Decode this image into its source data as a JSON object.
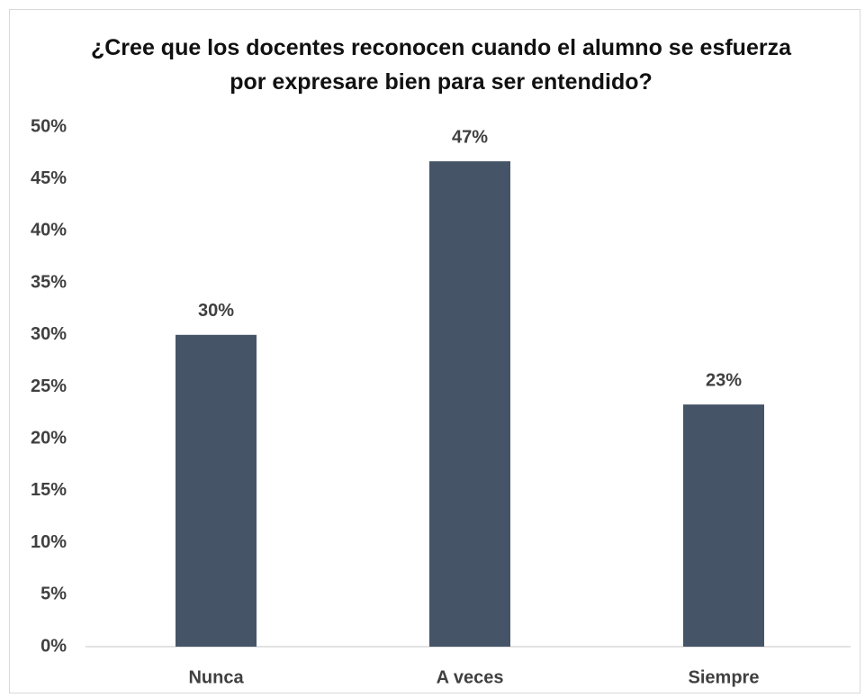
{
  "chart_data": {
    "type": "bar",
    "title": "¿Cree que los docentes reconocen cuando el alumno se esfuerza por expresare bien para ser entendido?",
    "categories": [
      "Nunca",
      "A veces",
      "Siempre"
    ],
    "values": [
      30,
      46.7,
      23.3
    ],
    "value_labels": [
      "30%",
      "47%",
      "23%"
    ],
    "color": "#465468",
    "ylim": [
      0,
      50
    ],
    "yticks": [
      {
        "value": 0,
        "label": "0%"
      },
      {
        "value": 5,
        "label": "5%"
      },
      {
        "value": 10,
        "label": "10%"
      },
      {
        "value": 15,
        "label": "15%"
      },
      {
        "value": 20,
        "label": "20%"
      },
      {
        "value": 25,
        "label": "25%"
      },
      {
        "value": 30,
        "label": "30%"
      },
      {
        "value": 35,
        "label": "35%"
      },
      {
        "value": 40,
        "label": "40%"
      },
      {
        "value": 45,
        "label": "45%"
      },
      {
        "value": 50,
        "label": "50%"
      }
    ],
    "grid": false
  }
}
